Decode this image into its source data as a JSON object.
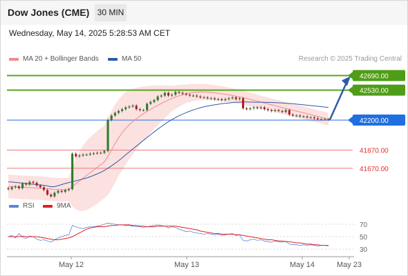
{
  "header": {
    "title": "Dow Jones (CME)",
    "timeframe": "30 MIN"
  },
  "datetime": "Wednesday, May 14, 2025 5:28:53 AM CET",
  "legend": [
    {
      "label": "MA 20 + Bollinger Bands",
      "color": "#f08a8a"
    },
    {
      "label": "MA 50",
      "color": "#2d5aa8"
    }
  ],
  "rsi_legend": [
    {
      "label": "RSI",
      "color": "#5b85d8"
    },
    {
      "label": "9MA",
      "color": "#e02020"
    }
  ],
  "copyright": "Research © 2025 Trading Central",
  "colors": {
    "resistance": "#5aa51e",
    "pivot": "#3c78e6",
    "support": "#ee7777",
    "arrow": "#2d5aa8"
  },
  "chart_data": [
    {
      "type": "candlestick",
      "x_labels": [
        "May 12",
        "May 13",
        "May 14",
        "May 23"
      ],
      "ylim": [
        41380,
        42770
      ],
      "levels": [
        {
          "value": 42690,
          "label": "42690.00",
          "kind": "resistance"
        },
        {
          "value": 42530,
          "label": "42530.00",
          "kind": "resistance"
        },
        {
          "value": 42200,
          "label": "42200.00",
          "kind": "pivot"
        },
        {
          "value": 41870,
          "label": "41870.00",
          "kind": "support"
        },
        {
          "value": 41670,
          "label": "41670.00",
          "kind": "support"
        }
      ],
      "close": [
        41440,
        41460,
        41470,
        41450,
        41500,
        41490,
        41520,
        41510,
        41480,
        41460,
        41430,
        41380,
        41360,
        41400,
        41420,
        41410,
        41430,
        41440,
        41830,
        41800,
        41810,
        41820,
        41820,
        41830,
        41835,
        41840,
        41840,
        41860,
        42200,
        42250,
        42280,
        42300,
        42320,
        42340,
        42350,
        42360,
        42320,
        42310,
        42310,
        42380,
        42400,
        42420,
        42460,
        42470,
        42500,
        42470,
        42480,
        42510,
        42500,
        42490,
        42480,
        42470,
        42470,
        42460,
        42450,
        42450,
        42440,
        42440,
        42430,
        42430,
        42420,
        42430,
        42440,
        42450,
        42430,
        42440,
        42330,
        42320,
        42330,
        42340,
        42330,
        42340,
        42320,
        42310,
        42300,
        42310,
        42300,
        42290,
        42310,
        42260,
        42250,
        42250,
        42240,
        42240,
        42230,
        42230,
        42220,
        42210,
        42210,
        42210,
        42205
      ],
      "ma50": [
        41520,
        41518,
        41514,
        41510,
        41506,
        41502,
        41498,
        41494,
        41490,
        41486,
        41482,
        41476,
        41466,
        41468,
        41478,
        41490,
        41502,
        41512,
        41522,
        41532,
        41542,
        41552,
        41562,
        41577,
        41592,
        41608,
        41625,
        41645,
        41670,
        41696,
        41723,
        41752,
        41785,
        41818,
        41850,
        41882,
        41913,
        41945,
        41978,
        42008,
        42040,
        42070,
        42100,
        42128,
        42156,
        42182,
        42206,
        42228,
        42248,
        42266,
        42282,
        42298,
        42312,
        42324,
        42336,
        42346,
        42354,
        42362,
        42368,
        42374,
        42380,
        42385,
        42389,
        42393,
        42396,
        42398,
        42399,
        42399,
        42398,
        42398,
        42397,
        42397,
        42396,
        42395,
        42394,
        42392,
        42390,
        42388,
        42386,
        42383,
        42380,
        42376,
        42372,
        42368,
        42364,
        42360,
        42356,
        42352,
        42348,
        42344,
        42340
      ],
      "ma20": [
        41470,
        41468,
        41465,
        41462,
        41460,
        41458,
        41456,
        41454,
        41452,
        41450,
        41448,
        41446,
        41440,
        41436,
        41434,
        41433,
        41434,
        41436,
        41468,
        41500,
        41530,
        41560,
        41590,
        41620,
        41650,
        41680,
        41710,
        41740,
        41800,
        41870,
        41940,
        42005,
        42060,
        42110,
        42150,
        42185,
        42215,
        42245,
        42270,
        42295,
        42318,
        42340,
        42362,
        42382,
        42402,
        42420,
        42438,
        42454,
        42468,
        42480,
        42490,
        42498,
        42504,
        42508,
        42510,
        42510,
        42508,
        42505,
        42500,
        42495,
        42490,
        42484,
        42478,
        42470,
        42462,
        42455,
        42447,
        42438,
        42428,
        42418,
        42408,
        42398,
        42388,
        42378,
        42368,
        42358,
        42348,
        42338,
        42328,
        42318,
        42308,
        42298,
        42290,
        42280,
        42270,
        42260,
        42250,
        42240,
        42230,
        42220,
        42210
      ],
      "bb_width": [
        130,
        130,
        130,
        130,
        130,
        130,
        130,
        130,
        130,
        130,
        130,
        130,
        130,
        130,
        130,
        130,
        130,
        130,
        220,
        280,
        330,
        360,
        380,
        390,
        395,
        400,
        400,
        400,
        430,
        430,
        430,
        420,
        410,
        400,
        380,
        360,
        340,
        320,
        300,
        280,
        260,
        240,
        220,
        200,
        180,
        160,
        140,
        130,
        120,
        110,
        100,
        100,
        95,
        92,
        90,
        90,
        88,
        86,
        85,
        85,
        84,
        82,
        80,
        80,
        80,
        80,
        80,
        78,
        76,
        74,
        72,
        70,
        70,
        70,
        70,
        70,
        70,
        70,
        70,
        70,
        70,
        70,
        70,
        70,
        70,
        70,
        70,
        70,
        70,
        70,
        70
      ]
    },
    {
      "type": "line",
      "title": "RSI",
      "y_ticks": [
        70,
        50,
        30
      ],
      "ylim": [
        20,
        80
      ],
      "rsi": [
        50,
        52,
        48,
        55,
        49,
        47,
        51,
        50,
        46,
        44,
        45,
        43,
        41,
        45,
        48,
        50,
        52,
        53,
        68,
        66,
        64,
        63,
        65,
        66,
        66,
        67,
        68,
        70,
        72,
        71,
        70,
        69,
        69,
        68,
        68,
        67,
        66,
        66,
        65,
        66,
        67,
        68,
        69,
        68,
        67,
        64,
        66,
        65,
        62,
        60,
        58,
        59,
        57,
        56,
        55,
        54,
        55,
        54,
        53,
        54,
        52,
        53,
        54,
        55,
        52,
        53,
        44,
        43,
        45,
        46,
        44,
        45,
        43,
        42,
        41,
        43,
        42,
        41,
        43,
        38,
        37,
        37,
        36,
        37,
        36,
        37,
        36,
        35,
        36,
        36,
        35
      ],
      "ma9": [
        50,
        50,
        50,
        50,
        51,
        50,
        50,
        50,
        50,
        49,
        48,
        47,
        46,
        45,
        45,
        46,
        47,
        48,
        50,
        53,
        56,
        59,
        62,
        64,
        65,
        66,
        66,
        66,
        67,
        68,
        68,
        69,
        69,
        69,
        69,
        68,
        68,
        67,
        67,
        66,
        66,
        66,
        67,
        67,
        67,
        67,
        67,
        67,
        66,
        65,
        64,
        63,
        62,
        61,
        59,
        58,
        57,
        56,
        55,
        55,
        54,
        54,
        54,
        54,
        53,
        53,
        52,
        51,
        50,
        49,
        48,
        47,
        46,
        45,
        45,
        44,
        43,
        43,
        42,
        42,
        41,
        40,
        40,
        39,
        38,
        38,
        37,
        37,
        36,
        36,
        36
      ]
    }
  ]
}
